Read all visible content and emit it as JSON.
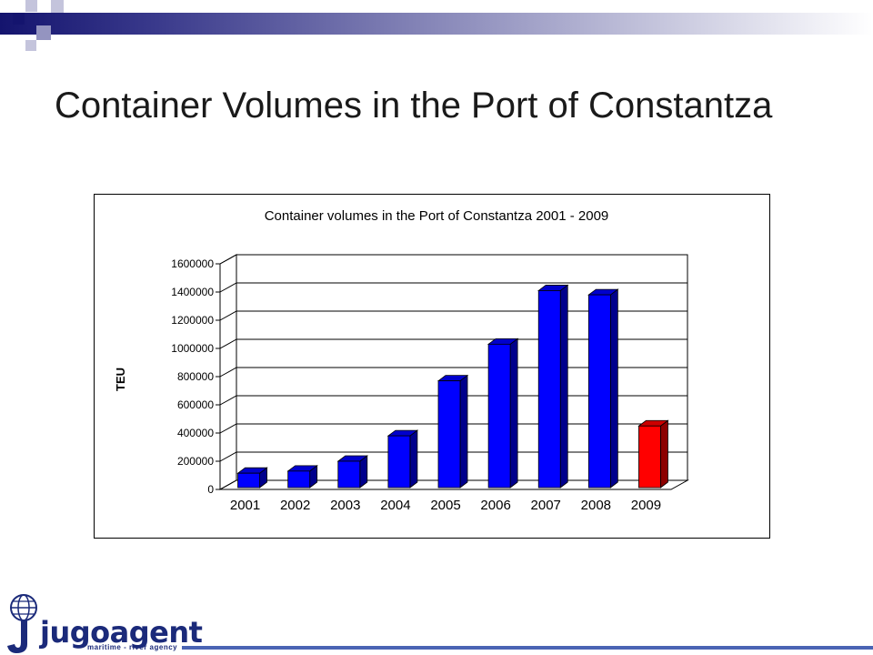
{
  "slide": {
    "title": "Container Volumes in the Port of Constantza"
  },
  "colors": {
    "band_dark": "#14146e",
    "bar_blue": "#0000ff",
    "bar_red": "#ff0000",
    "logo_blue": "#1b2a7a"
  },
  "logo": {
    "name": "jugoagent",
    "tagline": "maritime - river agency"
  },
  "chart_data": {
    "type": "bar",
    "title": "Container volumes in the Port of Constantza 2001 - 2009",
    "xlabel": "",
    "ylabel": "TEU",
    "categories": [
      "2001",
      "2002",
      "2003",
      "2004",
      "2005",
      "2006",
      "2007",
      "2008",
      "2009"
    ],
    "values": [
      115000,
      130000,
      200000,
      380000,
      770000,
      1030000,
      1410000,
      1380000,
      450000
    ],
    "highlight_color_by_category": {
      "2009": "#ff0000"
    },
    "default_color": "#0000ff",
    "ylim": [
      0,
      1600000
    ],
    "yticks": [
      "0",
      "200000",
      "400000",
      "600000",
      "800000",
      "1000000",
      "1200000",
      "1400000",
      "1600000"
    ],
    "grid": true,
    "style": "3d-column"
  }
}
